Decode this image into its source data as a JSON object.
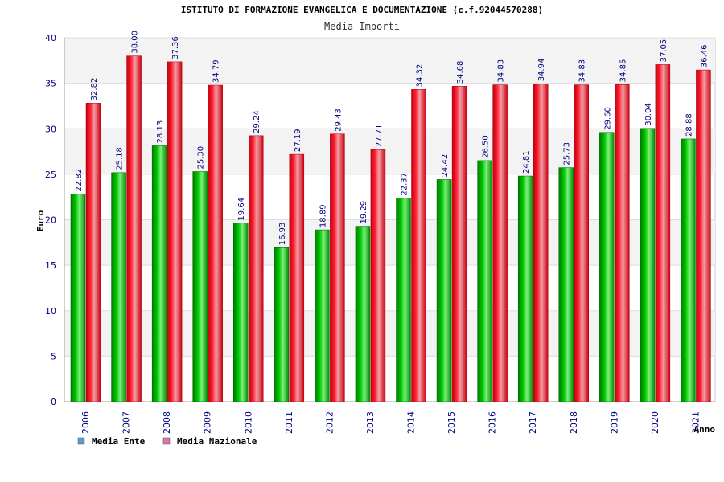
{
  "chart_data": {
    "type": "bar",
    "title": "ISTITUTO DI FORMAZIONE EVANGELICA E DOCUMENTAZIONE (c.f.92044570288)",
    "subtitle": "Media Importi",
    "ylabel": "Euro",
    "xlabel": "Anno",
    "ylim": [
      0,
      40
    ],
    "yticks": [
      "0",
      "5",
      "10",
      "15",
      "20",
      "25",
      "30",
      "35",
      "40"
    ],
    "grid": true,
    "legend_position": "bottom-left",
    "categories": [
      "2006",
      "2007",
      "2008",
      "2009",
      "2010",
      "2011",
      "2012",
      "2013",
      "2014",
      "2015",
      "2016",
      "2017",
      "2018",
      "2019",
      "2020",
      "2021"
    ],
    "series": [
      {
        "name": "Media Ente",
        "color": "#00a000",
        "legend_color": "#5b9bd5",
        "values": [
          22.82,
          25.18,
          28.13,
          25.3,
          19.64,
          16.93,
          18.89,
          19.29,
          22.37,
          24.42,
          26.5,
          24.81,
          25.73,
          29.6,
          30.04,
          28.88
        ],
        "labels": [
          "22.82",
          "25.18",
          "28.13",
          "25.30",
          "19.64",
          "16.93",
          "18.89",
          "19.29",
          "22.37",
          "24.42",
          "26.50",
          "24.81",
          "25.73",
          "29.60",
          "30.04",
          "28.88"
        ]
      },
      {
        "name": "Media Nazionale",
        "color": "#e00010",
        "legend_color": "#d878b0",
        "values": [
          32.82,
          38.0,
          37.36,
          34.79,
          29.24,
          27.19,
          29.43,
          27.71,
          34.32,
          34.68,
          34.83,
          34.94,
          34.83,
          34.85,
          37.05,
          36.46
        ],
        "labels": [
          "32.82",
          "38.00",
          "37.36",
          "34.79",
          "29.24",
          "27.19",
          "29.43",
          "27.71",
          "34.32",
          "34.68",
          "34.83",
          "34.94",
          "34.83",
          "34.85",
          "37.05",
          "36.46"
        ]
      }
    ]
  }
}
